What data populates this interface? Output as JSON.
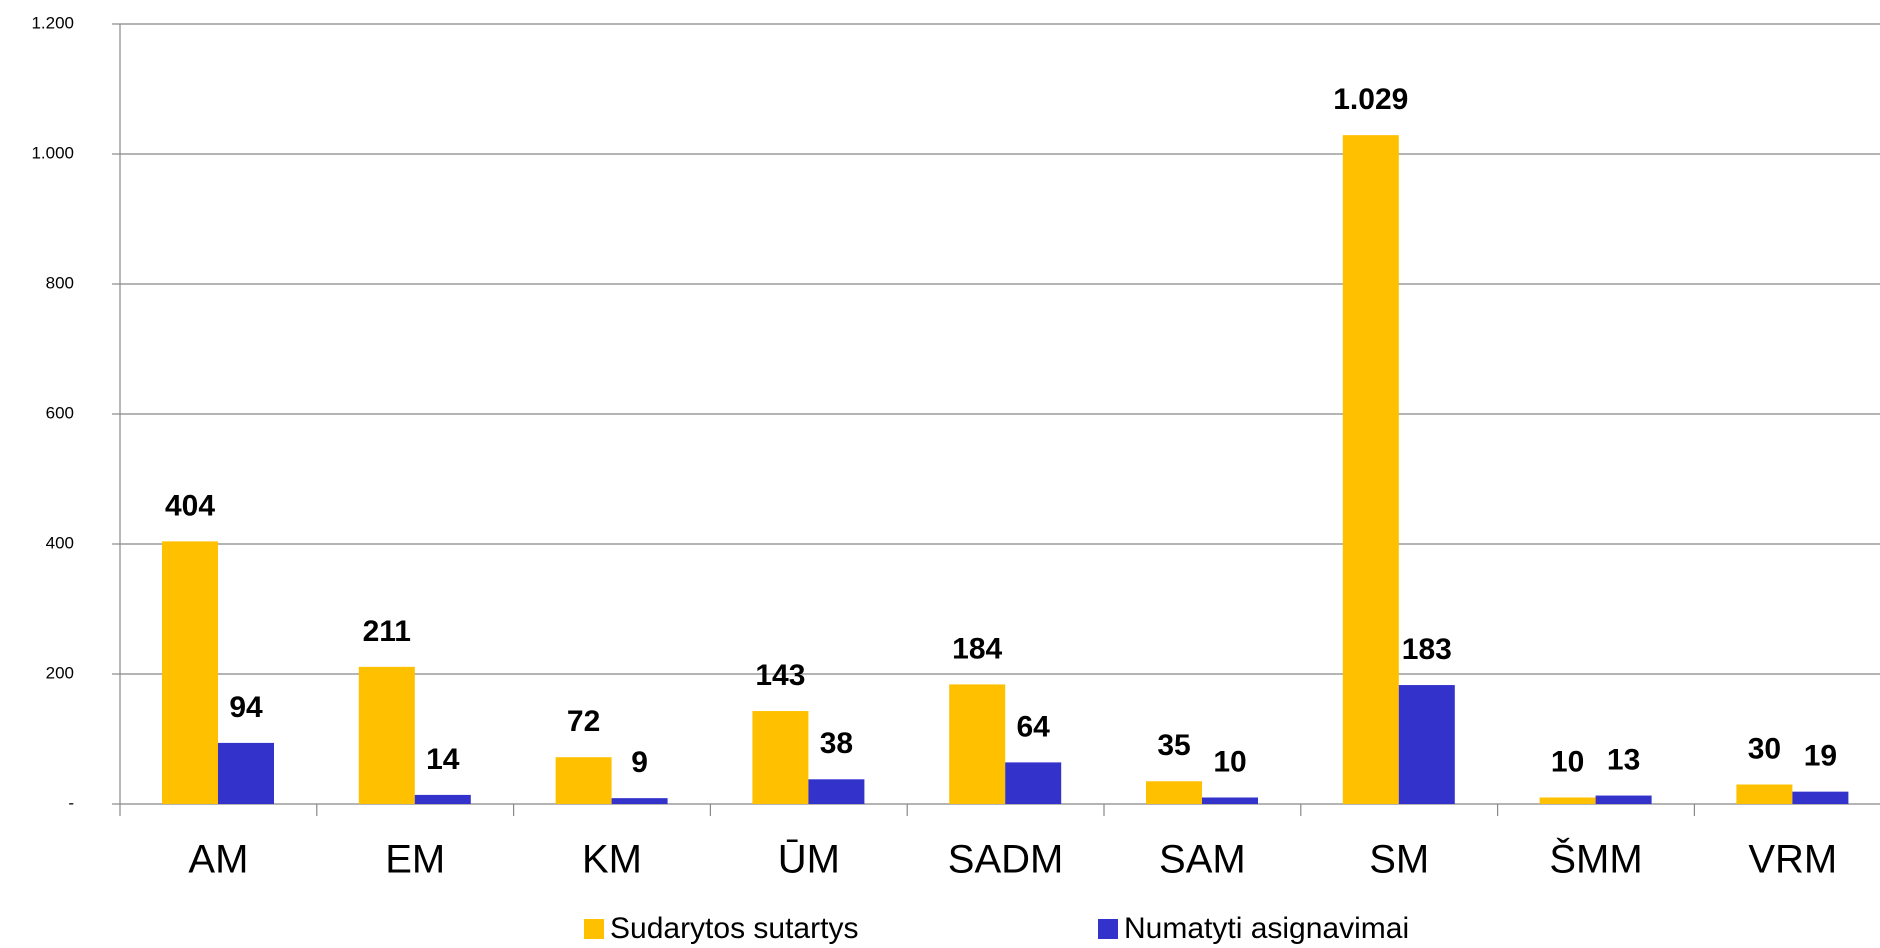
{
  "chart_data": {
    "type": "bar",
    "categories": [
      "AM",
      "EM",
      "KM",
      "ŪM",
      "SADM",
      "SAM",
      "SM",
      "ŠMM",
      "VRM"
    ],
    "series": [
      {
        "name": "Sudarytos sutartys",
        "color": "#ffc000",
        "values": [
          404,
          211,
          72,
          143,
          184,
          35,
          1029,
          10,
          30
        ],
        "value_labels": [
          "404",
          "211",
          "72",
          "143",
          "184",
          "35",
          "1.029",
          "10",
          "30"
        ]
      },
      {
        "name": "Numatyti asignavimai",
        "color": "#3333cc",
        "values": [
          94,
          14,
          9,
          38,
          64,
          10,
          183,
          13,
          19
        ]
      }
    ],
    "ylim": [
      0,
      1200
    ],
    "yticks": [
      {
        "value": 0,
        "label": "-"
      },
      200,
      400,
      600,
      800,
      {
        "value": 1000,
        "label": "1.000"
      },
      {
        "value": 1200,
        "label": "1.200"
      }
    ],
    "grid": true,
    "legend": "bottom"
  }
}
